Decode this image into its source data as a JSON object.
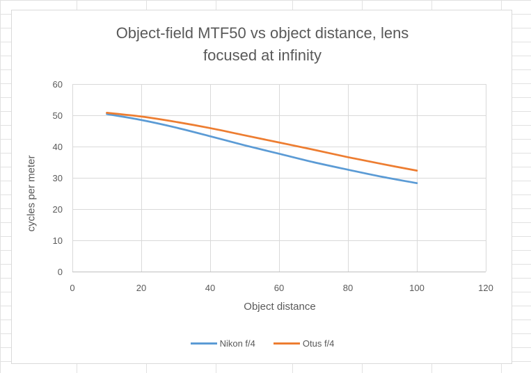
{
  "chart_data": {
    "type": "line",
    "title": "Object-field MTF50 vs object distance, lens focused at infinity",
    "title_lines": [
      "Object-field MTF50 vs object distance, lens",
      "focused at infinity"
    ],
    "xlabel": "Object distance",
    "ylabel": "cycles per meter",
    "xlim": [
      0,
      120
    ],
    "ylim": [
      0,
      60
    ],
    "xticks": [
      0,
      20,
      40,
      60,
      80,
      100,
      120
    ],
    "yticks": [
      0,
      10,
      20,
      30,
      40,
      50,
      60
    ],
    "grid": true,
    "legend_position": "bottom",
    "series": [
      {
        "name": "Nikon f/4",
        "color": "#5b9bd5",
        "x": [
          10,
          20,
          30,
          40,
          50,
          60,
          70,
          80,
          90,
          100
        ],
        "y": [
          50.4,
          48.5,
          46.1,
          43.3,
          40.4,
          37.7,
          35.0,
          32.6,
          30.3,
          28.3
        ]
      },
      {
        "name": "Otus f/4",
        "color": "#ed7d31",
        "x": [
          10,
          20,
          30,
          40,
          50,
          60,
          70,
          80,
          90,
          100
        ],
        "y": [
          50.8,
          49.6,
          47.9,
          45.9,
          43.6,
          41.3,
          39.0,
          36.6,
          34.4,
          32.3
        ]
      }
    ]
  }
}
